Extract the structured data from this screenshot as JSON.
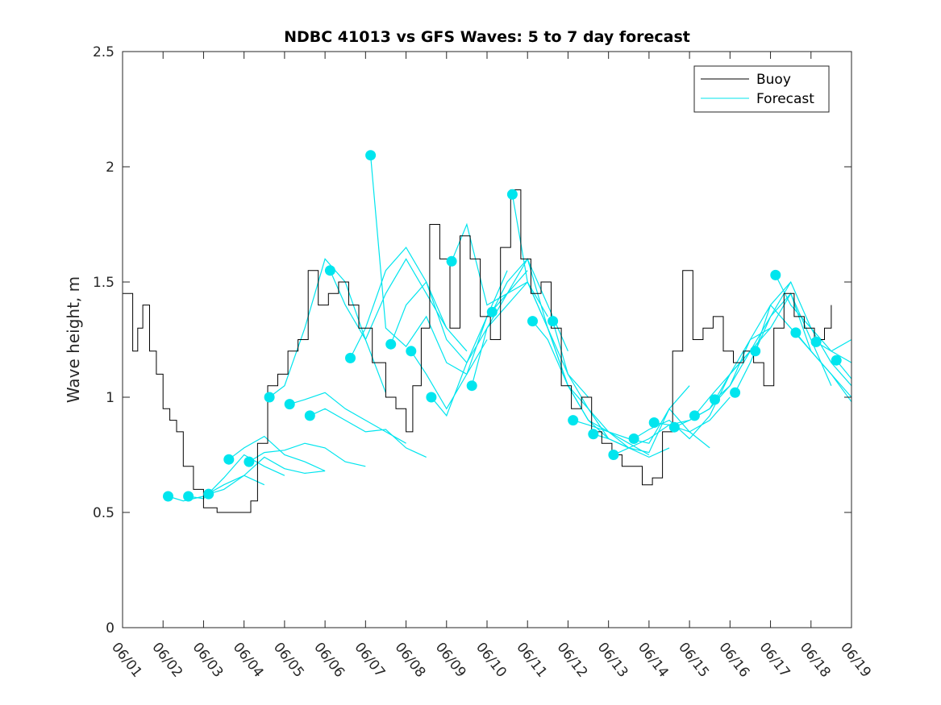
{
  "chart_data": {
    "type": "line",
    "title": "NDBC 41013 vs GFS Waves: 5 to 7 day forecast",
    "xlabel": "",
    "ylabel": "Wave height, m",
    "xlim": [
      "06/01",
      "06/19"
    ],
    "ylim": [
      0,
      2.5
    ],
    "x_tick_labels": [
      "06/01",
      "06/02",
      "06/03",
      "06/04",
      "06/05",
      "06/06",
      "06/07",
      "06/08",
      "06/09",
      "06/10",
      "06/11",
      "06/12",
      "06/13",
      "06/14",
      "06/15",
      "06/16",
      "06/17",
      "06/18",
      "06/19"
    ],
    "y_tick_labels": [
      "0",
      "0.5",
      "1",
      "1.5",
      "2",
      "2.5"
    ],
    "y_ticks": [
      0,
      0.5,
      1,
      1.5,
      2,
      2.5
    ],
    "legend": {
      "placement": "top-right",
      "entries": [
        "Buoy",
        "Forecast"
      ]
    },
    "colors": {
      "buoy": "#000000",
      "forecast": "#00e5ee",
      "axis": "#262626"
    },
    "buoy": {
      "name": "Buoy",
      "x": [
        "06/01 00:00",
        "06/01 06:00",
        "06/01 09:00",
        "06/01 12:00",
        "06/01 16:00",
        "06/01 20:00",
        "06/02 00:00",
        "06/02 04:00",
        "06/02 08:00",
        "06/02 12:00",
        "06/02 18:00",
        "06/03 00:00",
        "06/03 08:00",
        "06/03 16:00",
        "06/04 00:00",
        "06/04 04:00",
        "06/04 08:00",
        "06/04 14:00",
        "06/04 20:00",
        "06/05 02:00",
        "06/05 08:00",
        "06/05 14:00",
        "06/05 20:00",
        "06/06 02:00",
        "06/06 08:00",
        "06/06 14:00",
        "06/06 20:00",
        "06/07 04:00",
        "06/07 12:00",
        "06/07 18:00",
        "06/08 00:00",
        "06/08 04:00",
        "06/08 09:00",
        "06/08 14:00",
        "06/08 20:00",
        "06/09 02:00",
        "06/09 08:00",
        "06/09 14:00",
        "06/09 20:00",
        "06/10 02:00",
        "06/10 08:00",
        "06/10 14:00",
        "06/10 20:00",
        "06/11 02:00",
        "06/11 08:00",
        "06/11 14:00",
        "06/11 20:00",
        "06/12 02:00",
        "06/12 08:00",
        "06/12 14:00",
        "06/12 20:00",
        "06/13 02:00",
        "06/13 08:00",
        "06/13 14:00",
        "06/13 20:00",
        "06/14 02:00",
        "06/14 08:00",
        "06/14 14:00",
        "06/14 20:00",
        "06/15 02:00",
        "06/15 08:00",
        "06/15 14:00",
        "06/15 20:00",
        "06/16 02:00",
        "06/16 08:00",
        "06/16 14:00",
        "06/16 20:00",
        "06/17 02:00",
        "06/17 08:00",
        "06/17 14:00",
        "06/17 20:00",
        "06/18 02:00",
        "06/18 08:00",
        "06/18 12:00"
      ],
      "y": [
        1.45,
        1.2,
        1.3,
        1.4,
        1.2,
        1.1,
        0.95,
        0.9,
        0.85,
        0.7,
        0.6,
        0.52,
        0.5,
        0.5,
        0.5,
        0.55,
        0.8,
        1.05,
        1.1,
        1.2,
        1.25,
        1.55,
        1.4,
        1.45,
        1.5,
        1.4,
        1.3,
        1.15,
        1.0,
        0.95,
        0.85,
        1.05,
        1.3,
        1.75,
        1.6,
        1.3,
        1.7,
        1.6,
        1.35,
        1.25,
        1.65,
        1.9,
        1.6,
        1.45,
        1.5,
        1.3,
        1.05,
        0.95,
        1.0,
        0.85,
        0.8,
        0.75,
        0.7,
        0.7,
        0.62,
        0.65,
        0.85,
        1.2,
        1.55,
        1.25,
        1.3,
        1.35,
        1.2,
        1.15,
        1.2,
        1.15,
        1.05,
        1.3,
        1.45,
        1.35,
        1.3,
        1.25,
        1.3,
        1.4
      ]
    },
    "forecast": {
      "name": "Forecast",
      "runs": [
        {
          "x": [
            "06/02 03:00",
            "06/02 12:00",
            "06/03 00:00",
            "06/03 12:00",
            "06/04 00:00",
            "06/04 12:00"
          ],
          "y": [
            0.57,
            0.55,
            0.57,
            0.62,
            0.66,
            0.62
          ]
        },
        {
          "x": [
            "06/02 15:00",
            "06/03 00:00",
            "06/03 12:00",
            "06/04 00:00",
            "06/04 12:00",
            "06/05 00:00"
          ],
          "y": [
            0.57,
            0.56,
            0.65,
            0.75,
            0.7,
            0.66
          ]
        },
        {
          "x": [
            "06/03 03:00",
            "06/03 12:00",
            "06/04 00:00",
            "06/04 12:00",
            "06/05 00:00",
            "06/05 12:00",
            "06/06 00:00"
          ],
          "y": [
            0.58,
            0.6,
            0.66,
            0.74,
            0.69,
            0.67,
            0.68
          ]
        },
        {
          "x": [
            "06/03 15:00",
            "06/04 00:00",
            "06/04 12:00",
            "06/05 00:00",
            "06/05 12:00",
            "06/06 00:00"
          ],
          "y": [
            0.73,
            0.78,
            0.83,
            0.75,
            0.72,
            0.68
          ]
        },
        {
          "x": [
            "06/04 03:00",
            "06/04 12:00",
            "06/05 00:00",
            "06/05 12:00",
            "06/06 00:00",
            "06/06 12:00",
            "06/07 00:00"
          ],
          "y": [
            0.72,
            0.76,
            0.77,
            0.8,
            0.78,
            0.72,
            0.7
          ]
        },
        {
          "x": [
            "06/04 15:00",
            "06/05 00:00",
            "06/05 12:00",
            "06/06 00:00",
            "06/06 12:00",
            "06/07 00:00",
            "06/07 12:00"
          ],
          "y": [
            1.0,
            1.05,
            1.3,
            1.6,
            1.5,
            1.25,
            1.02
          ]
        },
        {
          "x": [
            "06/05 03:00",
            "06/05 12:00",
            "06/06 00:00",
            "06/06 12:00",
            "06/07 00:00",
            "06/07 12:00",
            "06/08 00:00"
          ],
          "y": [
            0.97,
            0.99,
            1.02,
            0.95,
            0.9,
            0.85,
            0.8
          ]
        },
        {
          "x": [
            "06/05 15:00",
            "06/06 00:00",
            "06/06 12:00",
            "06/07 00:00",
            "06/07 12:00",
            "06/08 00:00",
            "06/08 12:00"
          ],
          "y": [
            0.92,
            0.95,
            0.9,
            0.85,
            0.86,
            0.78,
            0.74
          ]
        },
        {
          "x": [
            "06/06 03:00",
            "06/06 12:00",
            "06/07 00:00",
            "06/07 12:00",
            "06/08 00:00",
            "06/08 12:00",
            "06/09 00:00"
          ],
          "y": [
            1.55,
            1.4,
            1.25,
            1.45,
            1.6,
            1.45,
            1.3
          ]
        },
        {
          "x": [
            "06/06 15:00",
            "06/07 00:00",
            "06/07 12:00",
            "06/08 00:00",
            "06/08 12:00",
            "06/09 00:00",
            "06/09 12:00"
          ],
          "y": [
            1.17,
            1.3,
            1.55,
            1.65,
            1.5,
            1.3,
            1.2
          ]
        },
        {
          "x": [
            "06/07 03:00",
            "06/07 12:00",
            "06/08 00:00",
            "06/08 12:00",
            "06/09 00:00",
            "06/09 12:00",
            "06/10 00:00"
          ],
          "y": [
            2.05,
            1.3,
            1.22,
            1.35,
            1.15,
            1.1,
            1.25
          ]
        },
        {
          "x": [
            "06/07 15:00",
            "06/08 00:00",
            "06/08 12:00",
            "06/09 00:00",
            "06/09 12:00",
            "06/10 00:00",
            "06/10 12:00"
          ],
          "y": [
            1.23,
            1.4,
            1.5,
            1.25,
            1.15,
            1.35,
            1.55
          ]
        },
        {
          "x": [
            "06/08 03:00",
            "06/08 12:00",
            "06/09 00:00",
            "06/09 12:00",
            "06/10 00:00",
            "06/10 12:00",
            "06/11 00:00"
          ],
          "y": [
            1.2,
            1.1,
            0.95,
            1.1,
            1.35,
            1.45,
            1.55
          ]
        },
        {
          "x": [
            "06/08 15:00",
            "06/09 00:00",
            "06/09 12:00",
            "06/10 00:00",
            "06/10 12:00",
            "06/11 00:00",
            "06/11 12:00"
          ],
          "y": [
            1.0,
            0.92,
            1.15,
            1.3,
            1.4,
            1.5,
            1.35
          ]
        },
        {
          "x": [
            "06/09 03:00",
            "06/09 12:00",
            "06/10 00:00",
            "06/10 12:00",
            "06/11 00:00",
            "06/11 12:00",
            "06/12 00:00"
          ],
          "y": [
            1.59,
            1.75,
            1.4,
            1.45,
            1.6,
            1.4,
            1.2
          ]
        },
        {
          "x": [
            "06/09 15:00",
            "06/10 00:00",
            "06/10 12:00",
            "06/11 00:00",
            "06/11 12:00",
            "06/12 00:00",
            "06/12 12:00"
          ],
          "y": [
            1.05,
            1.3,
            1.45,
            1.5,
            1.3,
            1.1,
            1.0
          ]
        },
        {
          "x": [
            "06/10 03:00",
            "06/10 12:00",
            "06/11 00:00",
            "06/11 12:00",
            "06/12 00:00",
            "06/12 12:00",
            "06/13 00:00"
          ],
          "y": [
            1.37,
            1.5,
            1.6,
            1.3,
            1.05,
            0.9,
            0.82
          ]
        },
        {
          "x": [
            "06/10 15:00",
            "06/11 00:00",
            "06/11 12:00",
            "06/12 00:00",
            "06/12 12:00",
            "06/13 00:00",
            "06/13 12:00"
          ],
          "y": [
            1.88,
            1.5,
            1.3,
            1.05,
            0.95,
            0.82,
            0.78
          ]
        },
        {
          "x": [
            "06/11 03:00",
            "06/11 12:00",
            "06/12 00:00",
            "06/12 12:00",
            "06/13 00:00",
            "06/13 12:00",
            "06/14 00:00"
          ],
          "y": [
            1.33,
            1.25,
            1.05,
            0.9,
            0.85,
            0.8,
            0.75
          ]
        },
        {
          "x": [
            "06/11 15:00",
            "06/12 00:00",
            "06/12 12:00",
            "06/13 00:00",
            "06/13 12:00",
            "06/14 00:00",
            "06/14 12:00"
          ],
          "y": [
            1.33,
            1.1,
            0.95,
            0.85,
            0.78,
            0.74,
            0.78
          ]
        },
        {
          "x": [
            "06/12 03:00",
            "06/12 12:00",
            "06/13 00:00",
            "06/13 12:00",
            "06/14 00:00",
            "06/14 12:00",
            "06/15 00:00"
          ],
          "y": [
            0.9,
            0.88,
            0.85,
            0.82,
            0.8,
            0.95,
            1.05
          ]
        },
        {
          "x": [
            "06/12 15:00",
            "06/13 00:00",
            "06/13 12:00",
            "06/14 00:00",
            "06/14 12:00",
            "06/15 00:00",
            "06/15 12:00"
          ],
          "y": [
            0.84,
            0.82,
            0.78,
            0.76,
            0.95,
            0.85,
            0.78
          ]
        },
        {
          "x": [
            "06/13 03:00",
            "06/13 12:00",
            "06/14 00:00",
            "06/14 12:00",
            "06/15 00:00",
            "06/15 12:00",
            "06/16 00:00"
          ],
          "y": [
            0.75,
            0.78,
            0.82,
            0.88,
            0.85,
            0.9,
            1.0
          ]
        },
        {
          "x": [
            "06/13 15:00",
            "06/14 00:00",
            "06/14 12:00",
            "06/15 00:00",
            "06/15 12:00",
            "06/16 00:00",
            "06/16 12:00"
          ],
          "y": [
            0.82,
            0.86,
            0.9,
            0.82,
            0.92,
            1.1,
            1.2
          ]
        },
        {
          "x": [
            "06/14 03:00",
            "06/14 12:00",
            "06/15 00:00",
            "06/15 12:00",
            "06/16 00:00",
            "06/16 12:00",
            "06/17 00:00"
          ],
          "y": [
            0.89,
            0.88,
            0.9,
            0.95,
            1.05,
            1.25,
            1.3
          ]
        },
        {
          "x": [
            "06/14 15:00",
            "06/15 00:00",
            "06/15 12:00",
            "06/16 00:00",
            "06/16 12:00",
            "06/17 00:00",
            "06/17 12:00"
          ],
          "y": [
            0.87,
            0.9,
            0.95,
            1.1,
            1.2,
            1.35,
            1.5
          ]
        },
        {
          "x": [
            "06/15 03:00",
            "06/15 12:00",
            "06/16 00:00",
            "06/16 12:00",
            "06/17 00:00",
            "06/17 12:00",
            "06/18 00:00"
          ],
          "y": [
            0.92,
            1.0,
            1.1,
            1.25,
            1.4,
            1.3,
            1.2
          ]
        },
        {
          "x": [
            "06/15 15:00",
            "06/16 00:00",
            "06/16 12:00",
            "06/17 00:00",
            "06/17 12:00",
            "06/18 00:00",
            "06/18 12:00"
          ],
          "y": [
            0.99,
            1.05,
            1.2,
            1.3,
            1.45,
            1.25,
            1.05
          ]
        },
        {
          "x": [
            "06/16 03:00",
            "06/16 12:00",
            "06/17 00:00",
            "06/17 12:00",
            "06/18 00:00",
            "06/18 12:00",
            "06/19 00:00"
          ],
          "y": [
            1.02,
            1.15,
            1.35,
            1.45,
            1.2,
            1.1,
            0.98
          ]
        },
        {
          "x": [
            "06/16 15:00",
            "06/17 00:00",
            "06/17 12:00",
            "06/18 00:00",
            "06/18 12:00",
            "06/19 00:00"
          ],
          "y": [
            1.2,
            1.4,
            1.5,
            1.3,
            1.15,
            1.05
          ]
        },
        {
          "x": [
            "06/17 03:00",
            "06/17 12:00",
            "06/18 00:00",
            "06/18 12:00",
            "06/19 00:00"
          ],
          "y": [
            1.53,
            1.4,
            1.3,
            1.2,
            1.15
          ]
        },
        {
          "x": [
            "06/17 15:00",
            "06/18 00:00",
            "06/18 12:00",
            "06/19 00:00"
          ],
          "y": [
            1.28,
            1.2,
            1.1,
            1.0
          ]
        },
        {
          "x": [
            "06/18 03:00",
            "06/18 12:00",
            "06/19 00:00"
          ],
          "y": [
            1.24,
            1.2,
            1.25
          ]
        },
        {
          "x": [
            "06/18 15:00",
            "06/19 00:00"
          ],
          "y": [
            1.16,
            1.08
          ]
        }
      ]
    }
  }
}
